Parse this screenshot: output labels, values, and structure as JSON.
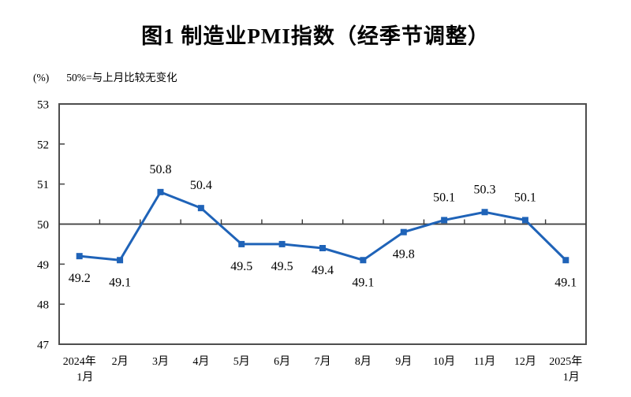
{
  "chart_data": {
    "type": "line",
    "title": "图1 制造业PMI指数（经季节调整）",
    "unit_label": "(%)",
    "note": "50%=与上月比较无变化",
    "series_name": "制造业PMI",
    "categories": [
      "2024年\n1月",
      "2月",
      "3月",
      "4月",
      "5月",
      "6月",
      "7月",
      "8月",
      "9月",
      "10月",
      "11月",
      "12月",
      "2025年\n1月"
    ],
    "values": [
      49.2,
      49.1,
      50.8,
      50.4,
      49.5,
      49.5,
      49.4,
      49.1,
      49.8,
      50.1,
      50.3,
      50.1,
      49.1
    ],
    "labels": [
      "49.2",
      "49.1",
      "50.8",
      "50.4",
      "49.5",
      "49.5",
      "49.4",
      "49.1",
      "49.8",
      "50.1",
      "50.3",
      "50.1",
      "49.1"
    ],
    "ylim": [
      47,
      53
    ],
    "yticks": [
      47,
      48,
      49,
      50,
      51,
      52,
      53
    ],
    "reference_value": 50,
    "grid": "off",
    "legend": "none",
    "line_color": "#1f63b8",
    "marker": "square",
    "axis_color": "#4d4d4d",
    "text_color": "#000000"
  }
}
